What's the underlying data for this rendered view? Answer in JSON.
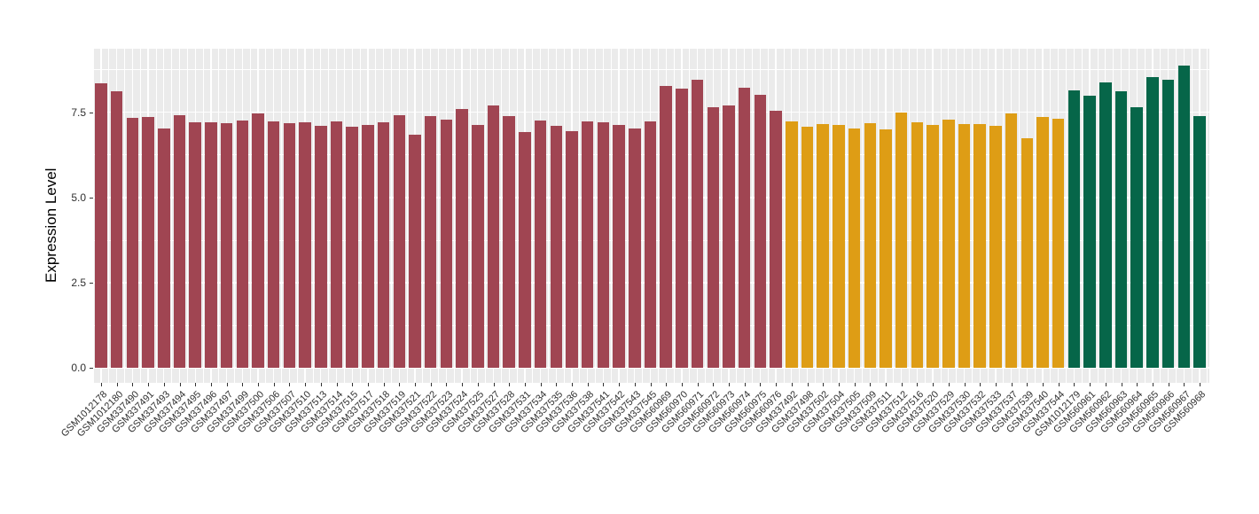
{
  "chart_data": {
    "type": "bar",
    "title": "",
    "xlabel": "",
    "ylabel": "Expression Level",
    "ylim": [
      0,
      9.4
    ],
    "yticks": [
      0.0,
      2.5,
      5.0,
      7.5
    ],
    "ytick_labels": [
      "0.0",
      "2.5",
      "5.0",
      "7.5"
    ],
    "grid": "major-and-minor, white on grey panel",
    "legend_position": "none",
    "panel_bg_color": "#EBEBEB",
    "gridline_color": "#FFFFFF",
    "group_colors": {
      "maroon": "#A04552",
      "gold": "#DE9D15",
      "green": "#066649"
    },
    "categories": [
      "GSM1012178",
      "GSM1012180",
      "GSM337490",
      "GSM337491",
      "GSM337493",
      "GSM337494",
      "GSM337495",
      "GSM337496",
      "GSM337497",
      "GSM337499",
      "GSM337500",
      "GSM337506",
      "GSM337507",
      "GSM337510",
      "GSM337513",
      "GSM337514",
      "GSM337515",
      "GSM337517",
      "GSM337518",
      "GSM337519",
      "GSM337521",
      "GSM337522",
      "GSM337523",
      "GSM337524",
      "GSM337525",
      "GSM337527",
      "GSM337528",
      "GSM337531",
      "GSM337534",
      "GSM337535",
      "GSM337536",
      "GSM337538",
      "GSM337541",
      "GSM337542",
      "GSM337543",
      "GSM337545",
      "GSM560969",
      "GSM560970",
      "GSM560971",
      "GSM560972",
      "GSM560973",
      "GSM560974",
      "GSM560975",
      "GSM560976",
      "GSM337492",
      "GSM337498",
      "GSM337502",
      "GSM337504",
      "GSM337505",
      "GSM337509",
      "GSM337511",
      "GSM337512",
      "GSM337516",
      "GSM337520",
      "GSM337529",
      "GSM337530",
      "GSM337532",
      "GSM337533",
      "GSM337537",
      "GSM337539",
      "GSM337540",
      "GSM337544",
      "GSM1012179",
      "GSM560961",
      "GSM560962",
      "GSM560963",
      "GSM560964",
      "GSM560965",
      "GSM560966",
      "GSM560967",
      "GSM560968"
    ],
    "values": [
      8.35,
      8.11,
      7.33,
      7.35,
      7.02,
      7.41,
      7.21,
      7.21,
      7.18,
      7.26,
      7.46,
      7.22,
      7.19,
      7.2,
      7.11,
      7.22,
      7.07,
      7.14,
      7.21,
      7.41,
      6.83,
      7.39,
      7.29,
      7.6,
      7.12,
      7.7,
      7.4,
      6.91,
      7.27,
      7.11,
      6.95,
      7.23,
      7.21,
      7.13,
      7.02,
      7.23,
      8.26,
      8.19,
      8.45,
      7.65,
      7.7,
      8.22,
      8.01,
      7.54,
      7.24,
      7.08,
      7.15,
      7.12,
      7.03,
      7.18,
      6.99,
      7.49,
      7.21,
      7.13,
      7.28,
      7.15,
      7.16,
      7.09,
      7.47,
      6.74,
      7.37,
      7.31,
      8.13,
      7.98,
      8.37,
      8.12,
      7.65,
      8.52,
      8.45,
      8.86,
      7.39
    ],
    "bar_groups": [
      "maroon",
      "maroon",
      "maroon",
      "maroon",
      "maroon",
      "maroon",
      "maroon",
      "maroon",
      "maroon",
      "maroon",
      "maroon",
      "maroon",
      "maroon",
      "maroon",
      "maroon",
      "maroon",
      "maroon",
      "maroon",
      "maroon",
      "maroon",
      "maroon",
      "maroon",
      "maroon",
      "maroon",
      "maroon",
      "maroon",
      "maroon",
      "maroon",
      "maroon",
      "maroon",
      "maroon",
      "maroon",
      "maroon",
      "maroon",
      "maroon",
      "maroon",
      "maroon",
      "maroon",
      "maroon",
      "maroon",
      "maroon",
      "maroon",
      "maroon",
      "maroon",
      "gold",
      "gold",
      "gold",
      "gold",
      "gold",
      "gold",
      "gold",
      "gold",
      "gold",
      "gold",
      "gold",
      "gold",
      "gold",
      "gold",
      "gold",
      "gold",
      "gold",
      "gold",
      "green",
      "green",
      "green",
      "green",
      "green",
      "green",
      "green",
      "green",
      "green"
    ]
  }
}
